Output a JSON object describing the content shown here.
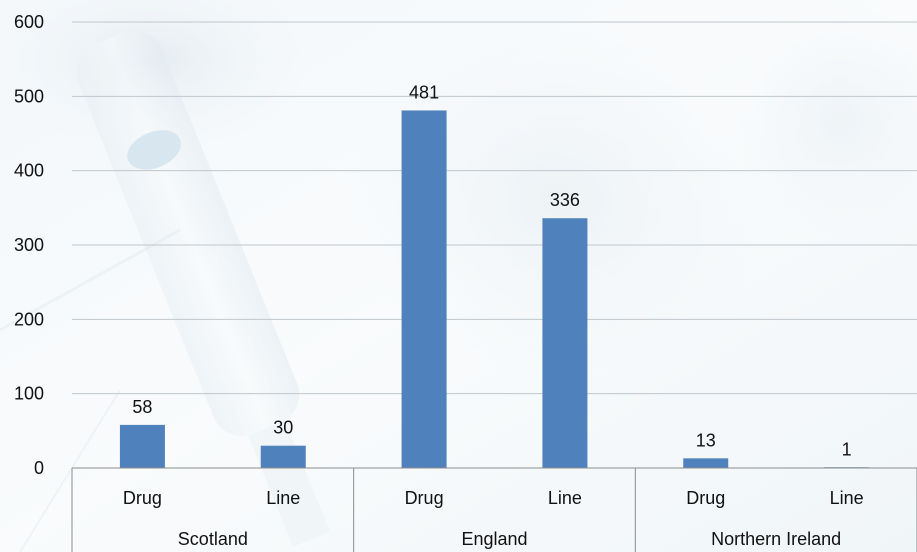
{
  "chart_data": {
    "type": "bar",
    "title": "",
    "xlabel": "",
    "ylabel": "",
    "ylim": [
      0,
      600
    ],
    "yticks": [
      0,
      100,
      200,
      300,
      400,
      500,
      600
    ],
    "grid": true,
    "legend": "none",
    "bar_color": "#4F81BD",
    "groups": [
      "Scotland",
      "England",
      "Northern Ireland"
    ],
    "categories": [
      "Drug",
      "Line",
      "Drug",
      "Line",
      "Drug",
      "Line"
    ],
    "category_group": [
      0,
      0,
      1,
      1,
      2,
      2
    ],
    "values": [
      58,
      30,
      481,
      336,
      13,
      1
    ]
  }
}
